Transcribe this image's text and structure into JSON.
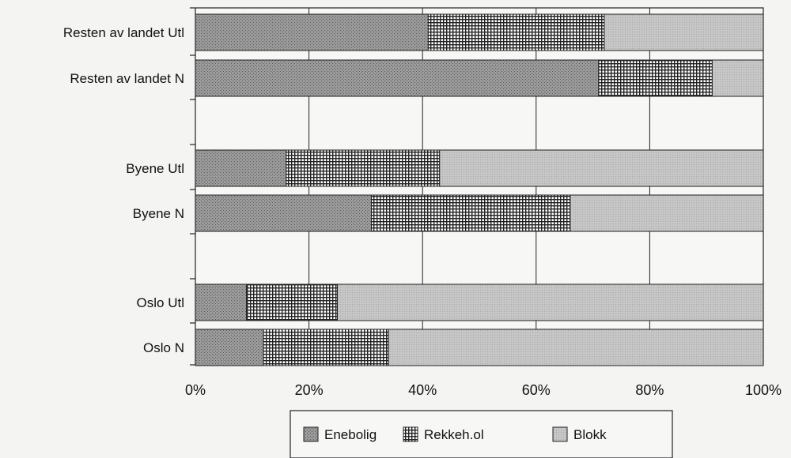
{
  "chart_data": {
    "type": "bar",
    "orientation": "horizontal",
    "stacked": true,
    "percent": true,
    "categories": [
      "Resten av landet Utl",
      "Resten av landet N",
      "Byene Utl",
      "Byene N",
      "Oslo Utl",
      "Oslo N"
    ],
    "series": [
      {
        "name": "Enebolig",
        "values": [
          41,
          71,
          16,
          31,
          9,
          12
        ],
        "color": "#8a8a8a",
        "pattern": "dots"
      },
      {
        "name": "Rekkeh.ol",
        "values": [
          31,
          20,
          27,
          35,
          16,
          22
        ],
        "color": "#6a6a6a",
        "pattern": "grid"
      },
      {
        "name": "Blokk",
        "values": [
          28,
          9,
          57,
          34,
          75,
          66
        ],
        "color": "#c4c4c4",
        "pattern": "stipple"
      }
    ],
    "x_ticks": [
      "0%",
      "20%",
      "40%",
      "60%",
      "80%",
      "100%"
    ],
    "xlim": [
      0,
      100
    ],
    "grid": true,
    "legend_position": "bottom"
  }
}
